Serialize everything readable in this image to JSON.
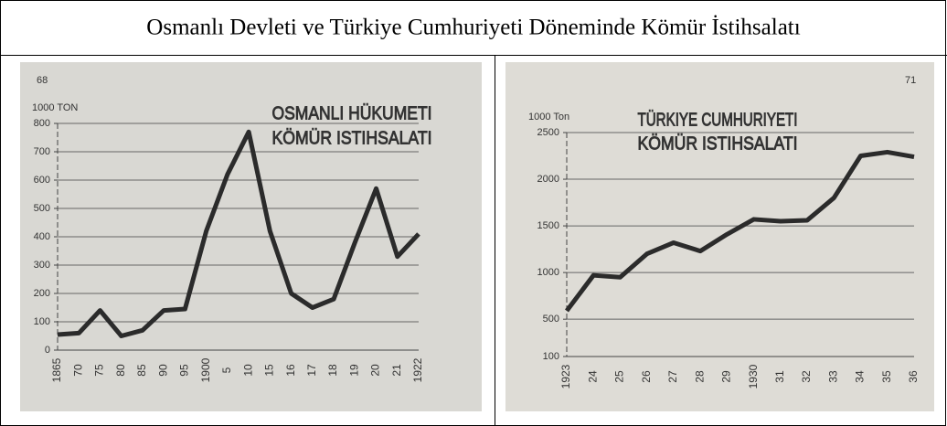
{
  "header": {
    "title": "Osmanlı Devleti ve Türkiye Cumhuriyeti Döneminde Kömür İstihsalatı"
  },
  "chart_data": [
    {
      "type": "line",
      "title": [
        "OSMANLI HÜKUMETI",
        "KÖMÜR ISTIHSALATI"
      ],
      "annotations": [
        "68"
      ],
      "y_label": "1000 TON",
      "categories": [
        "1865",
        "70",
        "75",
        "80",
        "85",
        "90",
        "95",
        "1900",
        "5",
        "10",
        "15",
        "16",
        "17",
        "18",
        "19",
        "20",
        "21",
        "1922"
      ],
      "values": [
        55,
        60,
        140,
        50,
        70,
        140,
        145,
        420,
        620,
        770,
        420,
        200,
        150,
        180,
        380,
        570,
        330,
        410
      ],
      "color": "#2b2b2b",
      "ylim": [
        0,
        800
      ],
      "yticks": [
        0,
        100,
        200,
        300,
        400,
        500,
        600,
        700,
        800
      ],
      "grid": true
    },
    {
      "type": "line",
      "title": [
        "TÜRKIYE CUMHURIYETI",
        "KÖMÜR ISTIHSALATI"
      ],
      "annotations": [
        "71"
      ],
      "y_label": "1000 Ton",
      "categories": [
        "1923",
        "24",
        "25",
        "26",
        "27",
        "28",
        "29",
        "1930",
        "31",
        "32",
        "33",
        "34",
        "35",
        "36"
      ],
      "values": [
        590,
        970,
        950,
        1200,
        1320,
        1230,
        1410,
        1570,
        1550,
        1560,
        1800,
        2250,
        2290,
        2240
      ],
      "color": "#2b2b2b",
      "ylim": [
        100,
        2500
      ],
      "yticks": [
        100,
        500,
        1000,
        1500,
        2000,
        2500
      ],
      "grid": true
    }
  ]
}
